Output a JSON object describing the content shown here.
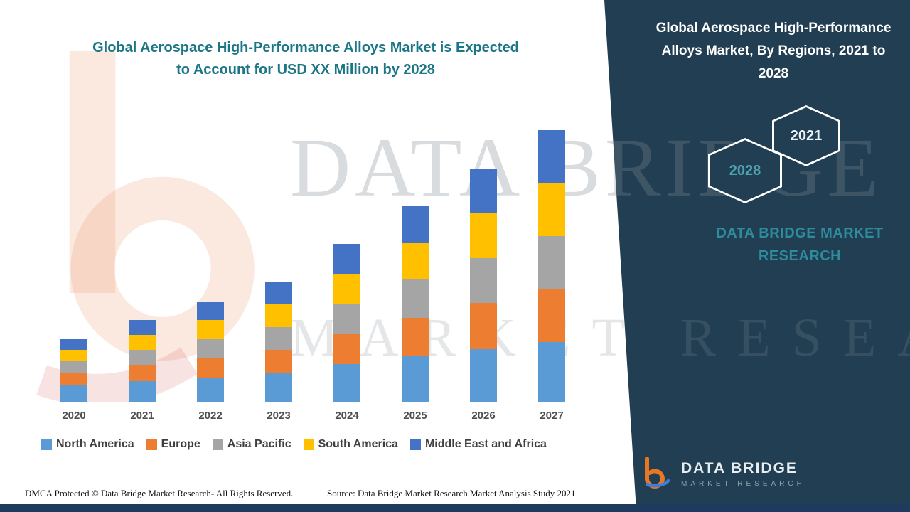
{
  "header": {
    "title_lines": [
      "Global Aerospace High-Performance Alloys Market is Expected",
      "to Account for USD XX Million by 2028"
    ],
    "title_color": "#1B7686"
  },
  "panel": {
    "title": "Global Aerospace High-Performance Alloys Market, By Regions, 2021 to 2028",
    "hexagon_back_label": "2021",
    "hexagon_front_label": "2028",
    "brand_lines": [
      "DATA BRIDGE MARKET",
      "RESEARCH"
    ],
    "logo": {
      "name_line": "DATA BRIDGE",
      "sub_line": "MARKET RESEARCH"
    },
    "bg_color": "#213E52",
    "brand_color": "#2E8C9E"
  },
  "watermark": {
    "line1": "DATA BRIDGE",
    "line2": "MARKET RESEARCH"
  },
  "footer": {
    "dmca": "DMCA Protected © Data Bridge Market Research- All Rights Reserved.",
    "source": "Source: Data Bridge Market Research Market Analysis Study 2021"
  },
  "chart_data": {
    "type": "bar",
    "stacked": true,
    "title": "Global Aerospace High-Performance Alloys Market is Expected to Account for USD XX Million by 2028",
    "categories": [
      "2020",
      "2021",
      "2022",
      "2023",
      "2024",
      "2025",
      "2026",
      "2027"
    ],
    "series": [
      {
        "key": "north-america",
        "name": "North America",
        "color": "#5B9BD5",
        "values": [
          6,
          7.5,
          9,
          10.5,
          14,
          17,
          19.5,
          22
        ]
      },
      {
        "key": "europe",
        "name": "Europe",
        "color": "#ED7D31",
        "values": [
          4.5,
          6,
          7,
          8.5,
          11,
          14,
          17,
          19.5
        ]
      },
      {
        "key": "asia-pacific",
        "name": "Asia Pacific",
        "color": "#A5A5A5",
        "values": [
          4.5,
          5.5,
          7,
          8.5,
          11,
          14,
          16.5,
          19.5
        ]
      },
      {
        "key": "south-america",
        "name": "South America",
        "color": "#FFC000",
        "values": [
          4,
          5.5,
          7,
          8.5,
          11,
          13.5,
          16.5,
          19.5
        ]
      },
      {
        "key": "middle-east-africa",
        "name": "Middle East and Africa",
        "color": "#4472C4",
        "values": [
          4,
          5.5,
          7,
          8,
          11,
          13.5,
          16.5,
          19.5
        ]
      }
    ],
    "xlabel": "",
    "ylabel": "",
    "ylim": [
      0,
      105
    ],
    "y_axis_labels_visible": false,
    "grid": false,
    "legend_position": "bottom",
    "units_note": "Y-axis unlabeled (USD XX Million); values estimated from bar heights in relative units"
  }
}
